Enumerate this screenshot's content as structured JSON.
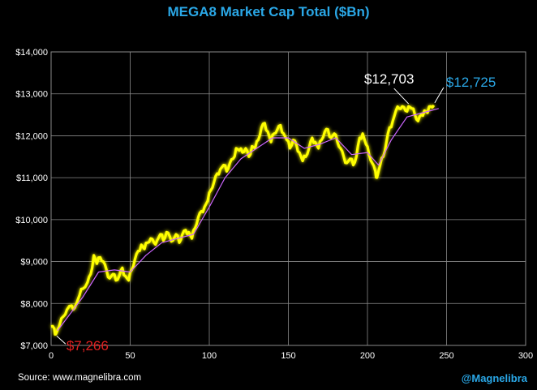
{
  "title": "MEGA8 Market Cap Total ($Bn)",
  "source": "Source: www.magnelibra.com",
  "handle": "@Magnelibra",
  "colors": {
    "background": "#000000",
    "title": "#2aa7e6",
    "price_line": "#ffff00",
    "moving_average": "#cc66ff",
    "grid": "#8a8a8a",
    "start_label": "#e02020",
    "peak_label": "#ffffff",
    "last_label": "#2aa7e6"
  },
  "chart_data": {
    "type": "line",
    "title": "MEGA8 Market Cap Total ($Bn)",
    "xlabel": "",
    "ylabel": "",
    "xlim": [
      0,
      300
    ],
    "ylim": [
      7000,
      14000
    ],
    "x_ticks": [
      0,
      50,
      100,
      150,
      200,
      250,
      300
    ],
    "y_ticks": [
      7000,
      8000,
      9000,
      10000,
      11000,
      12000,
      13000,
      14000
    ],
    "y_tick_labels": [
      "$7,000",
      "$8,000",
      "$9,000",
      "$10,000",
      "$11,000",
      "$12,000",
      "$13,000",
      "$14,000"
    ],
    "grid": true,
    "legend": "none",
    "anchors": [
      [
        0,
        7450
      ],
      [
        2,
        7400
      ],
      [
        3,
        7266
      ],
      [
        5,
        7450
      ],
      [
        8,
        7700
      ],
      [
        10,
        7850
      ],
      [
        13,
        7950
      ],
      [
        15,
        7900
      ],
      [
        18,
        8200
      ],
      [
        20,
        8350
      ],
      [
        23,
        8500
      ],
      [
        25,
        8700
      ],
      [
        27,
        9150
      ],
      [
        29,
        8950
      ],
      [
        31,
        9100
      ],
      [
        33,
        9000
      ],
      [
        35,
        8800
      ],
      [
        37,
        8600
      ],
      [
        39,
        8700
      ],
      [
        41,
        8550
      ],
      [
        43,
        8650
      ],
      [
        45,
        8850
      ],
      [
        47,
        8650
      ],
      [
        49,
        8550
      ],
      [
        51,
        8800
      ],
      [
        53,
        9050
      ],
      [
        55,
        9250
      ],
      [
        57,
        9400
      ],
      [
        59,
        9300
      ],
      [
        61,
        9450
      ],
      [
        63,
        9550
      ],
      [
        65,
        9450
      ],
      [
        67,
        9500
      ],
      [
        69,
        9650
      ],
      [
        71,
        9500
      ],
      [
        73,
        9700
      ],
      [
        75,
        9600
      ],
      [
        77,
        9500
      ],
      [
        79,
        9650
      ],
      [
        81,
        9450
      ],
      [
        83,
        9650
      ],
      [
        85,
        9750
      ],
      [
        87,
        9700
      ],
      [
        89,
        9550
      ],
      [
        91,
        9800
      ],
      [
        93,
        10050
      ],
      [
        95,
        10200
      ],
      [
        97,
        10300
      ],
      [
        99,
        10450
      ],
      [
        101,
        10700
      ],
      [
        103,
        10900
      ],
      [
        105,
        11100
      ],
      [
        107,
        11200
      ],
      [
        109,
        11300
      ],
      [
        111,
        11150
      ],
      [
        113,
        11350
      ],
      [
        115,
        11450
      ],
      [
        117,
        11700
      ],
      [
        119,
        11650
      ],
      [
        121,
        11600
      ],
      [
        123,
        11700
      ],
      [
        125,
        11500
      ],
      [
        127,
        11750
      ],
      [
        129,
        11700
      ],
      [
        131,
        11900
      ],
      [
        133,
        12200
      ],
      [
        135,
        12300
      ],
      [
        137,
        12100
      ],
      [
        139,
        11850
      ],
      [
        141,
        12050
      ],
      [
        143,
        12150
      ],
      [
        145,
        12250
      ],
      [
        147,
        12050
      ],
      [
        149,
        11900
      ],
      [
        151,
        11700
      ],
      [
        153,
        11900
      ],
      [
        155,
        11800
      ],
      [
        157,
        11600
      ],
      [
        159,
        11400
      ],
      [
        161,
        11500
      ],
      [
        163,
        11700
      ],
      [
        165,
        11950
      ],
      [
        167,
        11850
      ],
      [
        169,
        11700
      ],
      [
        171,
        11900
      ],
      [
        173,
        12100
      ],
      [
        175,
        12150
      ],
      [
        177,
        11950
      ],
      [
        179,
        12050
      ],
      [
        181,
        11850
      ],
      [
        183,
        11700
      ],
      [
        185,
        11500
      ],
      [
        187,
        11350
      ],
      [
        189,
        11450
      ],
      [
        191,
        11300
      ],
      [
        193,
        11500
      ],
      [
        195,
        11950
      ],
      [
        197,
        12050
      ],
      [
        199,
        11800
      ],
      [
        201,
        11550
      ],
      [
        203,
        11350
      ],
      [
        205,
        11150
      ],
      [
        206,
        11000
      ],
      [
        208,
        11300
      ],
      [
        210,
        11500
      ],
      [
        212,
        11850
      ],
      [
        214,
        12200
      ],
      [
        216,
        12350
      ],
      [
        218,
        12600
      ],
      [
        220,
        12650
      ],
      [
        222,
        12700
      ],
      [
        224,
        12600
      ],
      [
        226,
        12703
      ],
      [
        228,
        12650
      ],
      [
        230,
        12500
      ],
      [
        232,
        12350
      ],
      [
        234,
        12500
      ],
      [
        236,
        12600
      ],
      [
        238,
        12550
      ],
      [
        240,
        12700
      ],
      [
        242,
        12725
      ]
    ],
    "moving_average_anchors": [
      [
        4,
        7350
      ],
      [
        10,
        7650
      ],
      [
        20,
        8150
      ],
      [
        30,
        8750
      ],
      [
        40,
        8800
      ],
      [
        50,
        8750
      ],
      [
        60,
        9150
      ],
      [
        70,
        9450
      ],
      [
        80,
        9550
      ],
      [
        90,
        9650
      ],
      [
        100,
        10300
      ],
      [
        110,
        11000
      ],
      [
        120,
        11450
      ],
      [
        130,
        11700
      ],
      [
        140,
        11950
      ],
      [
        150,
        11950
      ],
      [
        160,
        11700
      ],
      [
        170,
        11800
      ],
      [
        180,
        11950
      ],
      [
        190,
        11550
      ],
      [
        200,
        11600
      ],
      [
        207,
        11300
      ],
      [
        215,
        11900
      ],
      [
        225,
        12450
      ],
      [
        235,
        12550
      ],
      [
        245,
        12650
      ]
    ],
    "annotations": [
      {
        "text": "$7,266",
        "x": 3,
        "y": 7266
      },
      {
        "text": "$12,703",
        "x": 226,
        "y": 12703
      },
      {
        "text": "$12,725",
        "x": 242,
        "y": 12725
      }
    ]
  }
}
